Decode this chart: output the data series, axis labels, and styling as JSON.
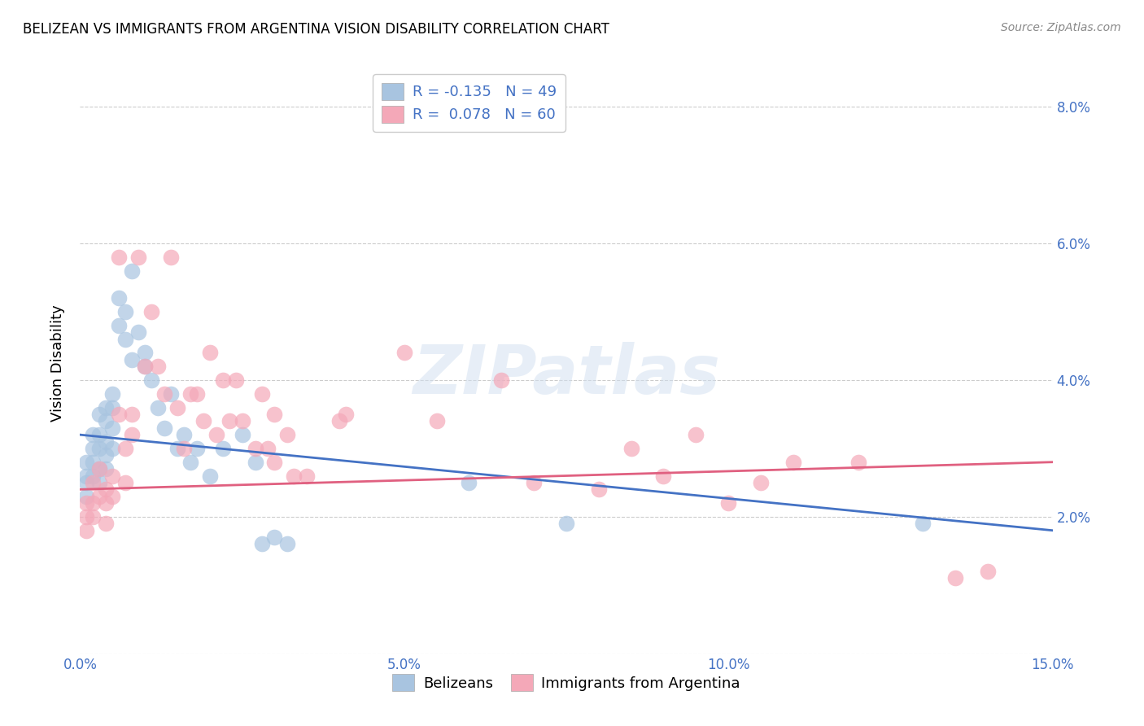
{
  "title": "BELIZEAN VS IMMIGRANTS FROM ARGENTINA VISION DISABILITY CORRELATION CHART",
  "source": "Source: ZipAtlas.com",
  "ylabel": "Vision Disability",
  "xlim": [
    0.0,
    0.15
  ],
  "ylim": [
    0.0,
    0.085
  ],
  "belizean_color": "#a8c4e0",
  "argentina_color": "#f4a8b8",
  "belizean_line_color": "#4472c4",
  "argentina_line_color": "#e06080",
  "legend_label_1": "R = -0.135   N = 49",
  "legend_label_2": "R =  0.078   N = 60",
  "legend_label_b": "Belizeans",
  "legend_label_a": "Immigrants from Argentina",
  "blue_trend_x0": 0.0,
  "blue_trend_y0": 0.032,
  "blue_trend_x1": 0.15,
  "blue_trend_y1": 0.018,
  "pink_trend_x0": 0.0,
  "pink_trend_y0": 0.024,
  "pink_trend_x1": 0.15,
  "pink_trend_y1": 0.028,
  "belizean_x": [
    0.001,
    0.001,
    0.001,
    0.001,
    0.002,
    0.002,
    0.002,
    0.002,
    0.003,
    0.003,
    0.003,
    0.003,
    0.003,
    0.004,
    0.004,
    0.004,
    0.004,
    0.004,
    0.005,
    0.005,
    0.005,
    0.005,
    0.006,
    0.006,
    0.007,
    0.007,
    0.008,
    0.008,
    0.009,
    0.01,
    0.01,
    0.011,
    0.012,
    0.013,
    0.014,
    0.015,
    0.016,
    0.017,
    0.018,
    0.02,
    0.022,
    0.025,
    0.027,
    0.028,
    0.03,
    0.032,
    0.06,
    0.075,
    0.13
  ],
  "belizean_y": [
    0.028,
    0.026,
    0.025,
    0.023,
    0.032,
    0.03,
    0.028,
    0.026,
    0.035,
    0.032,
    0.03,
    0.027,
    0.025,
    0.036,
    0.034,
    0.031,
    0.029,
    0.027,
    0.038,
    0.036,
    0.033,
    0.03,
    0.052,
    0.048,
    0.05,
    0.046,
    0.056,
    0.043,
    0.047,
    0.044,
    0.042,
    0.04,
    0.036,
    0.033,
    0.038,
    0.03,
    0.032,
    0.028,
    0.03,
    0.026,
    0.03,
    0.032,
    0.028,
    0.016,
    0.017,
    0.016,
    0.025,
    0.019,
    0.019
  ],
  "argentina_x": [
    0.001,
    0.001,
    0.001,
    0.002,
    0.002,
    0.002,
    0.003,
    0.003,
    0.004,
    0.004,
    0.004,
    0.005,
    0.005,
    0.006,
    0.006,
    0.007,
    0.007,
    0.008,
    0.008,
    0.009,
    0.01,
    0.011,
    0.012,
    0.013,
    0.014,
    0.015,
    0.016,
    0.017,
    0.018,
    0.019,
    0.02,
    0.021,
    0.022,
    0.023,
    0.024,
    0.025,
    0.027,
    0.028,
    0.029,
    0.03,
    0.03,
    0.032,
    0.033,
    0.035,
    0.04,
    0.041,
    0.05,
    0.055,
    0.065,
    0.07,
    0.08,
    0.085,
    0.09,
    0.095,
    0.1,
    0.105,
    0.11,
    0.12,
    0.135,
    0.14
  ],
  "argentina_y": [
    0.022,
    0.02,
    0.018,
    0.025,
    0.022,
    0.02,
    0.027,
    0.023,
    0.024,
    0.022,
    0.019,
    0.026,
    0.023,
    0.058,
    0.035,
    0.03,
    0.025,
    0.035,
    0.032,
    0.058,
    0.042,
    0.05,
    0.042,
    0.038,
    0.058,
    0.036,
    0.03,
    0.038,
    0.038,
    0.034,
    0.044,
    0.032,
    0.04,
    0.034,
    0.04,
    0.034,
    0.03,
    0.038,
    0.03,
    0.035,
    0.028,
    0.032,
    0.026,
    0.026,
    0.034,
    0.035,
    0.044,
    0.034,
    0.04,
    0.025,
    0.024,
    0.03,
    0.026,
    0.032,
    0.022,
    0.025,
    0.028,
    0.028,
    0.011,
    0.012
  ]
}
